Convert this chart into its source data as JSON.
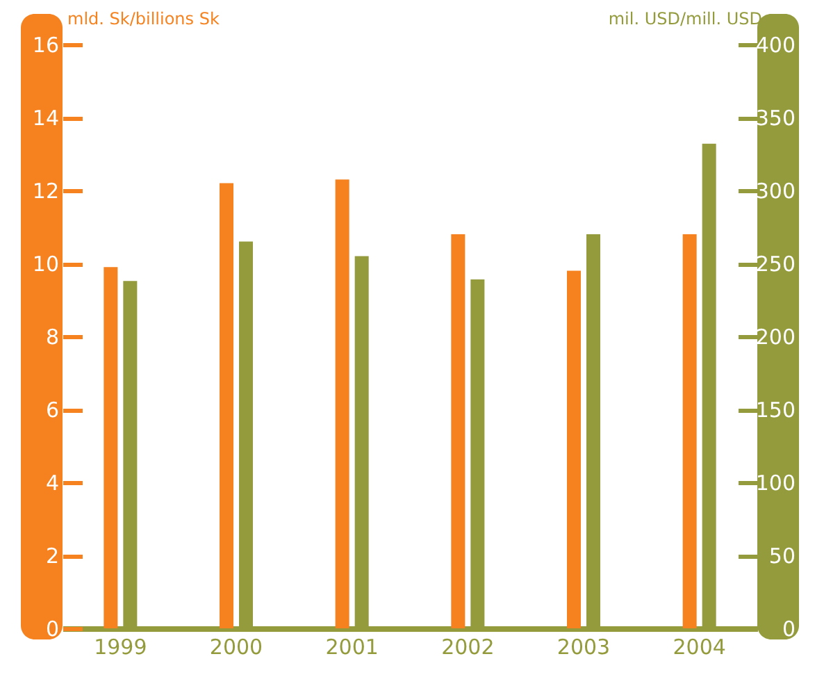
{
  "chart_data": {
    "type": "bar",
    "categories": [
      "1999",
      "2000",
      "2001",
      "2002",
      "2003",
      "2004"
    ],
    "ylabel": "mld. Sk/billions Sk",
    "y2label": "mil. USD/mill. USD",
    "series": [
      {
        "color": "#f5821f",
        "values": [
          9.9,
          12.2,
          12.3,
          10.8,
          9.8,
          10.8
        ]
      },
      {
        "color": "#939b3c",
        "axis": "y2",
        "values": [
          238,
          265,
          255,
          239,
          270,
          332
        ]
      }
    ],
    "ylim": [
      0,
      16
    ],
    "yticks": [
      0,
      2,
      4,
      6,
      8,
      10,
      12,
      14,
      16
    ],
    "y2lim": [
      0,
      400
    ],
    "y2ticks": [
      0,
      50,
      100,
      150,
      200,
      250,
      300,
      350,
      400
    ],
    "grid": false
  }
}
